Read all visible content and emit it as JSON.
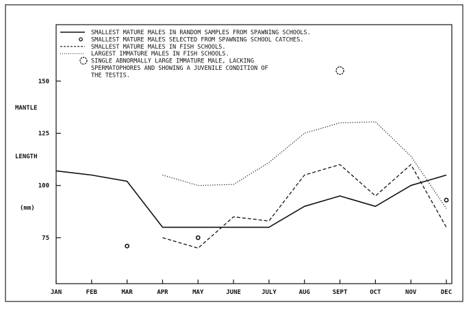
{
  "chart_data": {
    "type": "line",
    "title": "",
    "x_axis": {
      "categories": [
        "JAN",
        "FEB",
        "MAR",
        "APR",
        "MAY",
        "JUNE",
        "JULY",
        "AUG",
        "SEPT",
        "OCT",
        "NOV",
        "DEC"
      ]
    },
    "y_axis": {
      "label_lines": [
        "MANTLE",
        "LENGTH",
        "(mm)"
      ],
      "ticks": [
        "75",
        "100",
        "125",
        "150"
      ],
      "ylim": [
        53,
        177
      ]
    },
    "grid": false,
    "legend": {
      "placement": "top-left",
      "entries": [
        {
          "marker": "solid-line",
          "lines": [
            "SMALLEST MATURE MALES IN RANDOM SAMPLES FROM SPAWNING SCHOOLS."
          ]
        },
        {
          "marker": "small-circle",
          "lines": [
            "SMALLEST MATURE MALES SELECTED FROM SPAWNING SCHOOL CATCHES."
          ]
        },
        {
          "marker": "dashed-line",
          "lines": [
            "SMALLEST MATURE MALES IN FISH SCHOOLS."
          ]
        },
        {
          "marker": "dotted-line",
          "lines": [
            "LARGEST IMMATURE MALES IN FISH SCHOOLS."
          ]
        },
        {
          "marker": "large-circle",
          "lines": [
            "SINGLE ABNORMALLY LARGE IMMATURE MALE, LACKING",
            "SPERMATOPHORES AND SHOWING A JUVENILE CONDITION OF",
            "THE TESTIS."
          ]
        }
      ]
    },
    "series": [
      {
        "id": "smallest-mature-random",
        "style": "solid",
        "points": [
          [
            0,
            107
          ],
          [
            1,
            105
          ],
          [
            2,
            102
          ],
          [
            3,
            80
          ],
          [
            4,
            80
          ],
          [
            5,
            80
          ],
          [
            6,
            80
          ],
          [
            7,
            90
          ],
          [
            8,
            95
          ],
          [
            9,
            90
          ],
          [
            10,
            100
          ],
          [
            11,
            105
          ]
        ]
      },
      {
        "id": "smallest-mature-fish-schools",
        "style": "dashed",
        "points": [
          [
            3,
            75
          ],
          [
            4,
            70
          ],
          [
            5,
            85
          ],
          [
            6,
            83
          ],
          [
            7,
            105
          ],
          [
            8,
            110
          ],
          [
            9,
            95
          ],
          [
            10,
            110
          ],
          [
            11,
            80
          ]
        ]
      },
      {
        "id": "largest-immature-fish-schools",
        "style": "dotted",
        "points": [
          [
            3,
            105
          ],
          [
            4,
            100
          ],
          [
            5,
            100.5
          ],
          [
            6,
            111
          ],
          [
            7,
            125
          ],
          [
            8,
            130
          ],
          [
            9,
            130.5
          ],
          [
            10,
            114
          ],
          [
            11,
            89
          ]
        ]
      }
    ],
    "point_series": [
      {
        "id": "smallest-mature-selected",
        "marker": "small-circle",
        "points": [
          [
            2,
            71
          ],
          [
            4,
            75
          ],
          [
            11,
            93
          ]
        ]
      },
      {
        "id": "abnormal-large-immature",
        "marker": "large-circle",
        "points": [
          [
            8,
            155
          ]
        ]
      }
    ]
  }
}
